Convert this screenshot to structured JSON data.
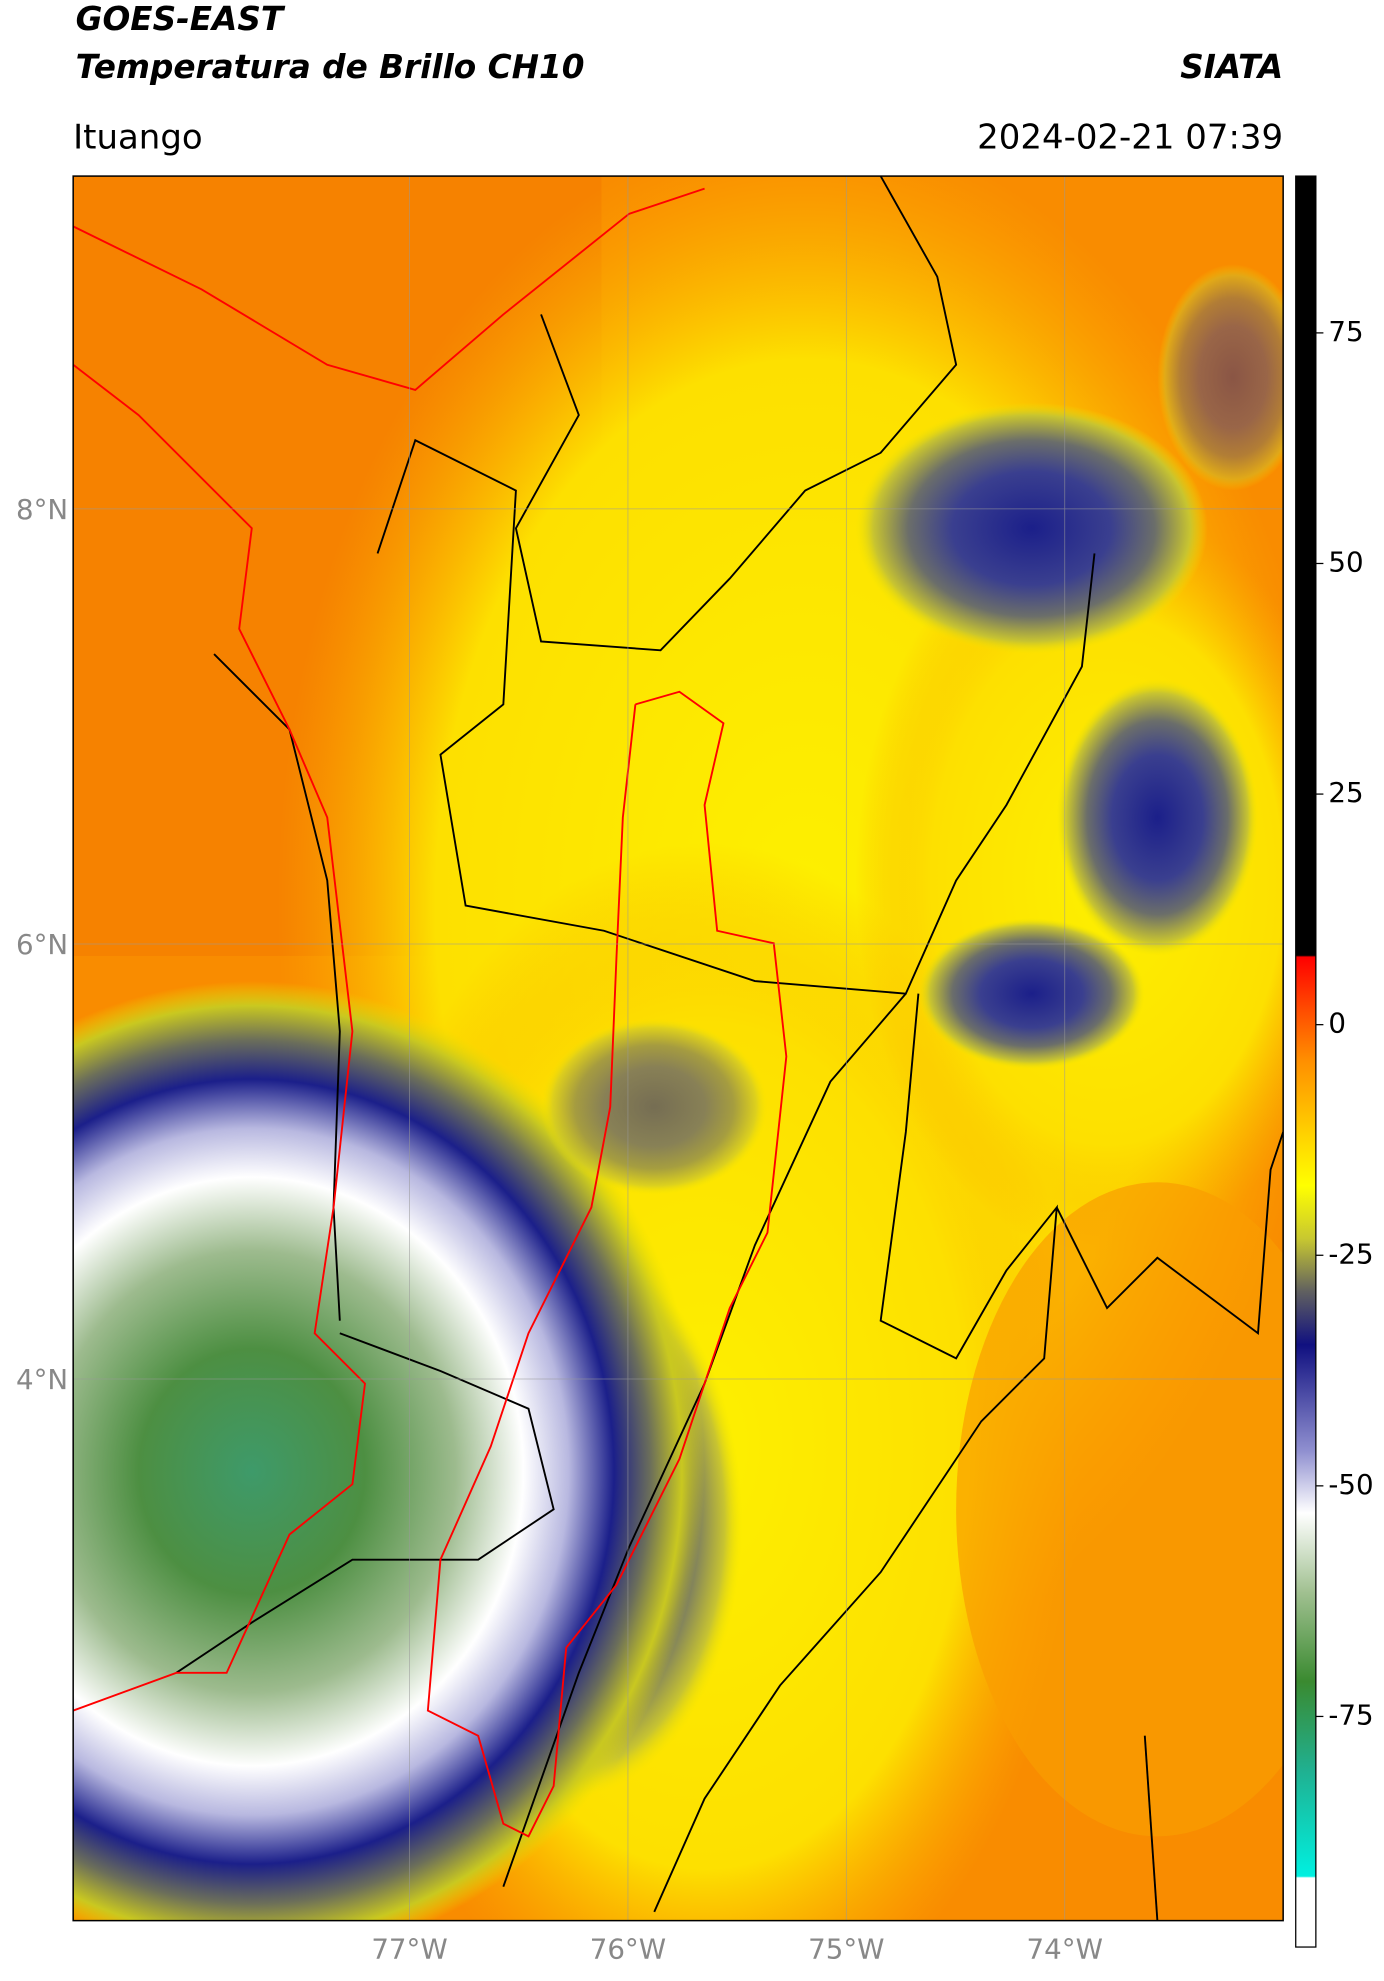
{
  "header": {
    "title": "GOES-EAST",
    "subtitle": "Temperatura de Brillo CH10",
    "brand": "SIATA",
    "location": "Ituango",
    "datetime": "2024-02-21 07:39"
  },
  "map": {
    "lat_range": [
      1.51,
      9.53
    ],
    "lon_range": [
      -78.54,
      -73.0
    ],
    "lat_ticks": [
      {
        "value": 8,
        "label": "8°N"
      },
      {
        "value": 6,
        "label": "6°N"
      },
      {
        "value": 4,
        "label": "4°N"
      }
    ],
    "lon_ticks": [
      {
        "value": -77,
        "label": "77°W"
      },
      {
        "value": -76,
        "label": "76°W"
      },
      {
        "value": -75,
        "label": "75°W"
      },
      {
        "value": -74,
        "label": "74°W"
      }
    ]
  },
  "colorbar": {
    "range": [
      -100,
      92
    ],
    "ticks": [
      75,
      50,
      25,
      0,
      -25,
      -50,
      -75
    ]
  }
}
